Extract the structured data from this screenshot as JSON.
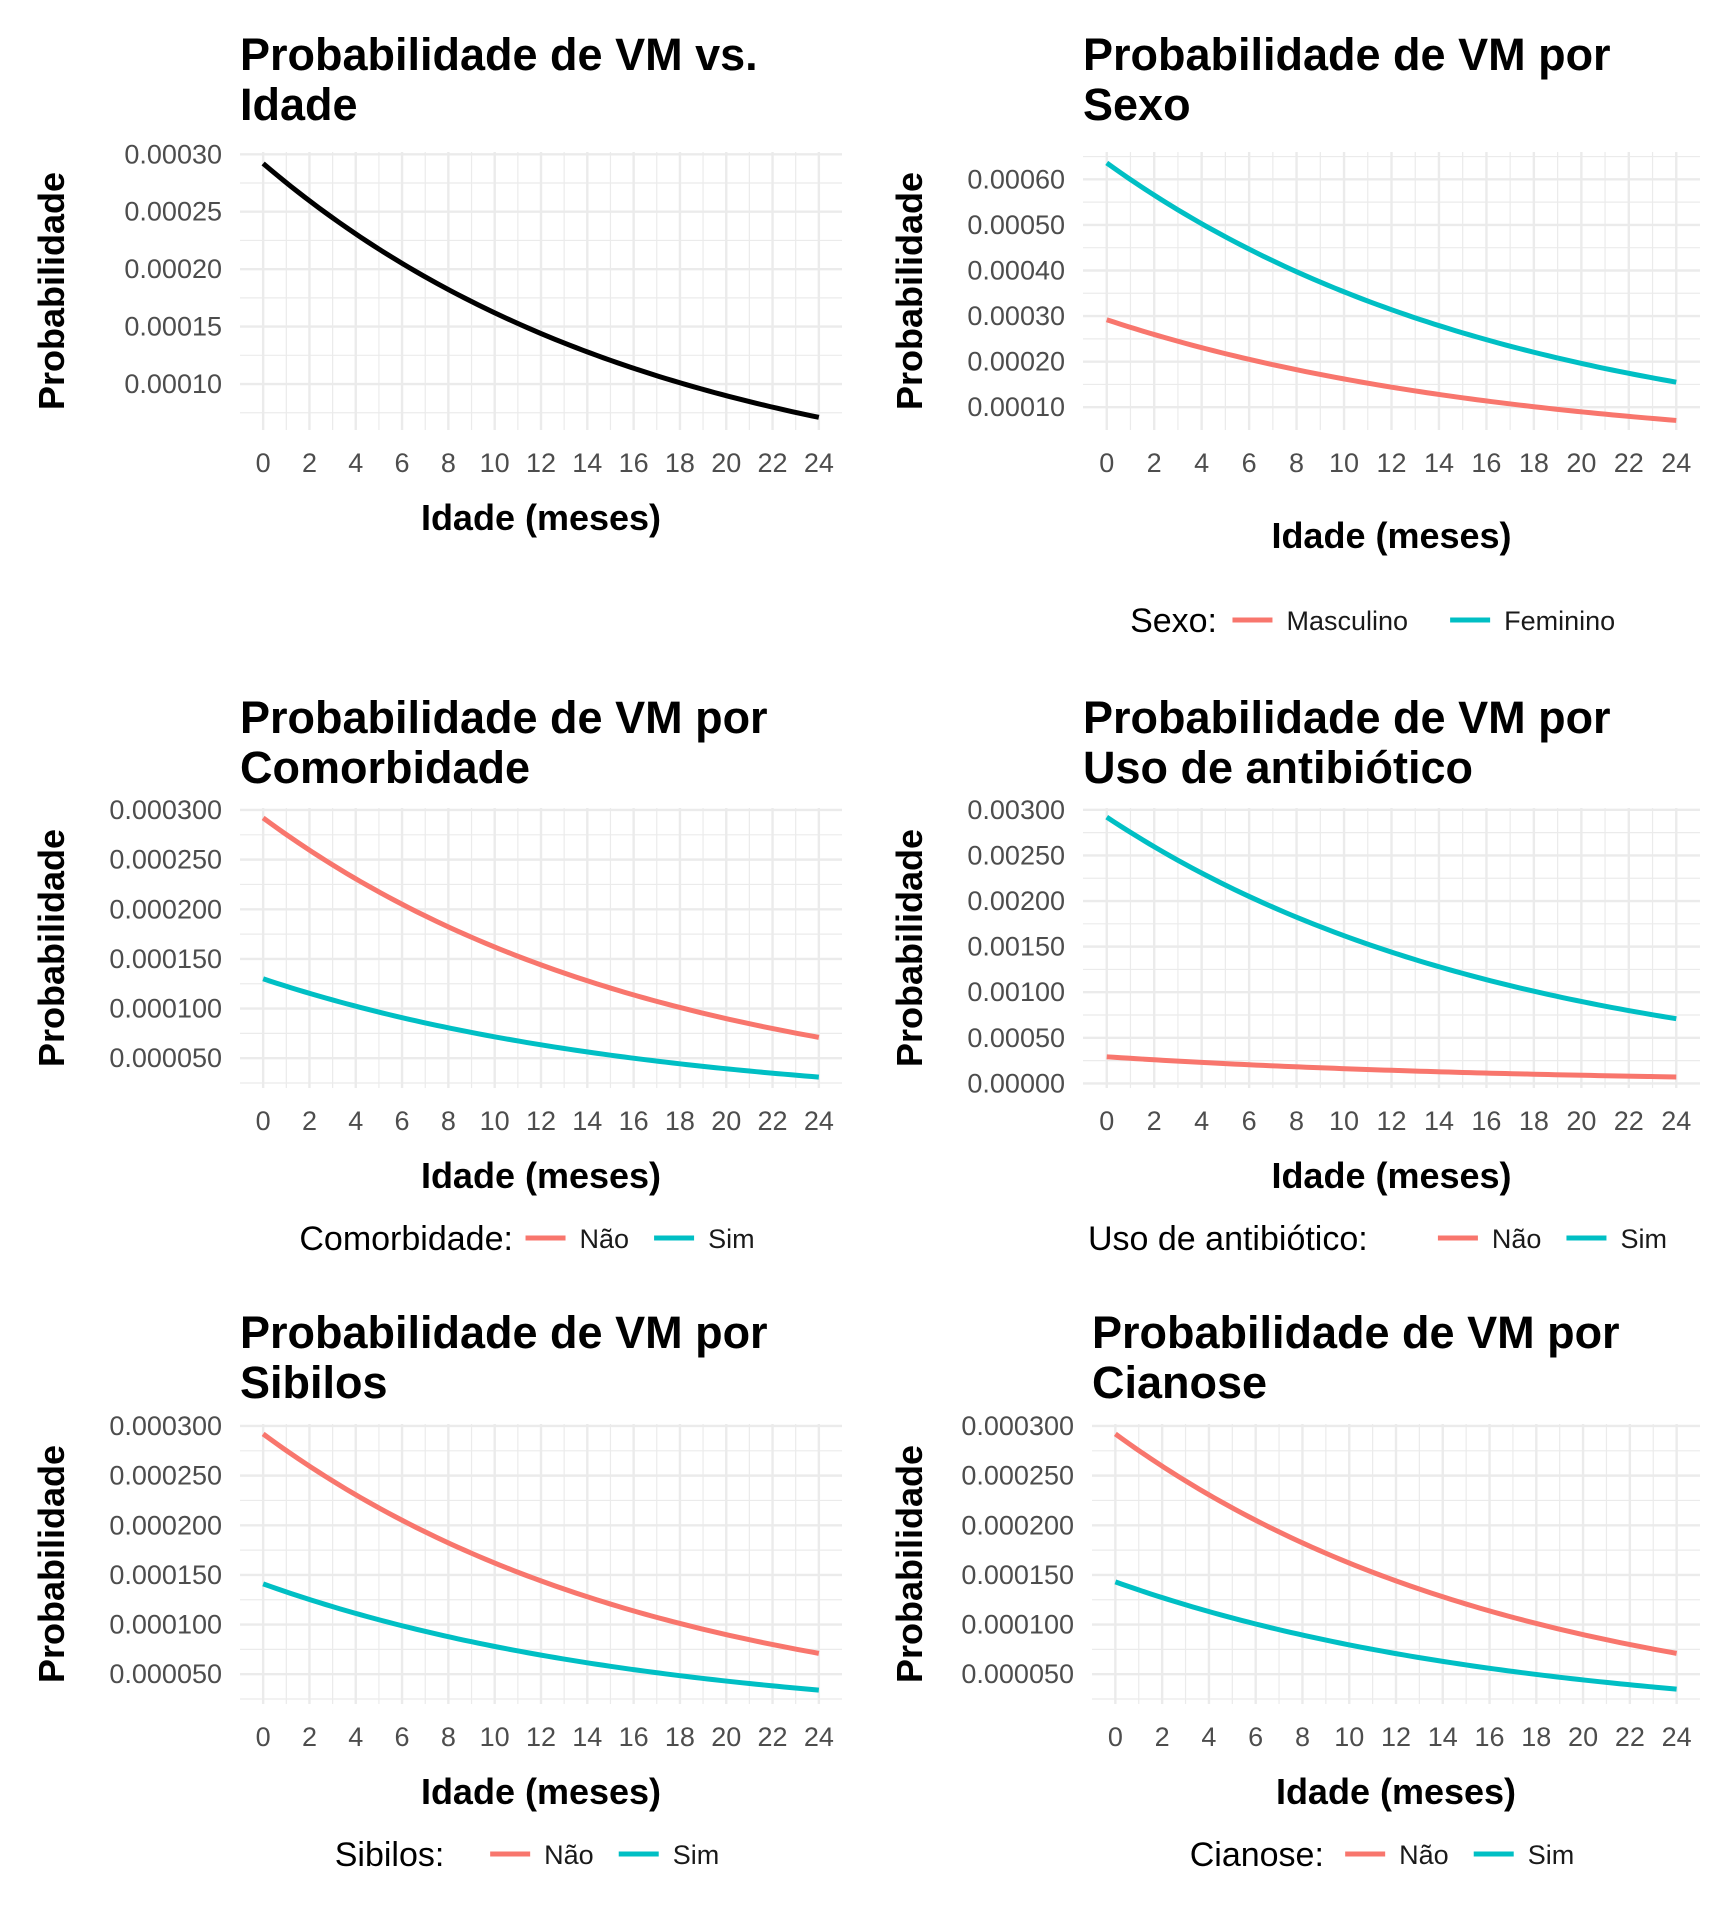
{
  "chart_data": [
    {
      "type": "line",
      "title": [
        "Probabilidade de VM vs.",
        "Idade"
      ],
      "xlabel": "Idade (meses)",
      "ylabel": "Probabilidade",
      "xlim": [
        -1,
        25
      ],
      "ylim": [
        6e-05,
        0.000302
      ],
      "xticks": [
        0,
        2,
        4,
        6,
        8,
        10,
        12,
        14,
        16,
        18,
        20,
        22,
        24
      ],
      "yticks": [
        0.0001,
        0.00015,
        0.0002,
        0.00025,
        0.0003
      ],
      "ytick_labels": [
        "0.00010",
        "0.00015",
        "0.00020",
        "0.00025",
        "0.00030"
      ],
      "grid": true,
      "legend_title": "",
      "series": [
        {
          "name": "",
          "color": "#000000",
          "start": 0.000292,
          "end": 7.1e-05,
          "x_range": [
            0,
            24
          ]
        }
      ]
    },
    {
      "type": "line",
      "title": [
        "Probabilidade de VM por",
        "Sexo"
      ],
      "xlabel": "Idade (meses)",
      "ylabel": "Probabilidade",
      "xlim": [
        -1,
        25
      ],
      "ylim": [
        5e-05,
        0.00066
      ],
      "xticks": [
        0,
        2,
        4,
        6,
        8,
        10,
        12,
        14,
        16,
        18,
        20,
        22,
        24
      ],
      "yticks": [
        0.0001,
        0.0002,
        0.0003,
        0.0004,
        0.0005,
        0.0006
      ],
      "ytick_labels": [
        "0.00010",
        "0.00020",
        "0.00030",
        "0.00040",
        "0.00050",
        "0.00060"
      ],
      "grid": true,
      "legend_title": "Sexo:",
      "legend_position": "bottom",
      "series": [
        {
          "name": "Masculino",
          "color": "#F8766D",
          "start": 0.000292,
          "end": 7.1e-05,
          "x_range": [
            0,
            24
          ]
        },
        {
          "name": "Feminino",
          "color": "#00BFC4",
          "start": 0.000636,
          "end": 0.000155,
          "x_range": [
            0,
            24
          ]
        }
      ]
    },
    {
      "type": "line",
      "title": [
        "Probabilidade de VM por",
        "Comorbidade"
      ],
      "xlabel": "Idade (meses)",
      "ylabel": "Probabilidade",
      "xlim": [
        -1,
        25
      ],
      "ylim": [
        2e-05,
        0.000302
      ],
      "xticks": [
        0,
        2,
        4,
        6,
        8,
        10,
        12,
        14,
        16,
        18,
        20,
        22,
        24
      ],
      "yticks": [
        5e-05,
        0.0001,
        0.00015,
        0.0002,
        0.00025,
        0.0003
      ],
      "ytick_labels": [
        "0.000050",
        "0.000100",
        "0.000150",
        "0.000200",
        "0.000250",
        "0.000300"
      ],
      "grid": true,
      "legend_title": "Comorbidade:",
      "legend_position": "bottom",
      "series": [
        {
          "name": "Não",
          "color": "#F8766D",
          "start": 0.000292,
          "end": 7.1e-05,
          "x_range": [
            0,
            24
          ]
        },
        {
          "name": "Sim",
          "color": "#00BFC4",
          "start": 0.00013,
          "end": 3.1e-05,
          "x_range": [
            0,
            24
          ]
        }
      ]
    },
    {
      "type": "line",
      "title": [
        "Probabilidade de VM por",
        "Uso de antibiótico"
      ],
      "xlabel": "Idade (meses)",
      "ylabel": "Probabilidade",
      "xlim": [
        -1,
        25
      ],
      "ylim": [
        -5e-05,
        0.00302
      ],
      "xticks": [
        0,
        2,
        4,
        6,
        8,
        10,
        12,
        14,
        16,
        18,
        20,
        22,
        24
      ],
      "yticks": [
        0,
        0.0005,
        0.001,
        0.0015,
        0.002,
        0.0025,
        0.003
      ],
      "ytick_labels": [
        "0.00000",
        "0.00050",
        "0.00100",
        "0.00150",
        "0.00200",
        "0.00250",
        "0.00300"
      ],
      "grid": true,
      "legend_title": "Uso de antibiótico:",
      "legend_position": "bottom",
      "series": [
        {
          "name": "Não",
          "color": "#F8766D",
          "start": 0.000292,
          "end": 7.1e-05,
          "x_range": [
            0,
            24
          ]
        },
        {
          "name": "Sim",
          "color": "#00BFC4",
          "start": 0.00292,
          "end": 0.00071,
          "x_range": [
            0,
            24
          ]
        }
      ]
    },
    {
      "type": "line",
      "title": [
        "Probabilidade de VM por",
        "Sibilos"
      ],
      "xlabel": "Idade (meses)",
      "ylabel": "Probabilidade",
      "xlim": [
        -1,
        25
      ],
      "ylim": [
        2e-05,
        0.000302
      ],
      "xticks": [
        0,
        2,
        4,
        6,
        8,
        10,
        12,
        14,
        16,
        18,
        20,
        22,
        24
      ],
      "yticks": [
        5e-05,
        0.0001,
        0.00015,
        0.0002,
        0.00025,
        0.0003
      ],
      "ytick_labels": [
        "0.000050",
        "0.000100",
        "0.000150",
        "0.000200",
        "0.000250",
        "0.000300"
      ],
      "grid": true,
      "legend_title": "Sibilos:",
      "legend_position": "bottom",
      "series": [
        {
          "name": "Não",
          "color": "#F8766D",
          "start": 0.000292,
          "end": 7.1e-05,
          "x_range": [
            0,
            24
          ]
        },
        {
          "name": "Sim",
          "color": "#00BFC4",
          "start": 0.000141,
          "end": 3.4e-05,
          "x_range": [
            0,
            24
          ]
        }
      ]
    },
    {
      "type": "line",
      "title": [
        "Probabilidade de VM por",
        "Cianose"
      ],
      "xlabel": "Idade (meses)",
      "ylabel": "Probabilidade",
      "xlim": [
        -1,
        25
      ],
      "ylim": [
        2e-05,
        0.000302
      ],
      "xticks": [
        0,
        2,
        4,
        6,
        8,
        10,
        12,
        14,
        16,
        18,
        20,
        22,
        24
      ],
      "yticks": [
        5e-05,
        0.0001,
        0.00015,
        0.0002,
        0.00025,
        0.0003
      ],
      "ytick_labels": [
        "0.000050",
        "0.000100",
        "0.000150",
        "0.000200",
        "0.000250",
        "0.000300"
      ],
      "grid": true,
      "legend_title": "Cianose:",
      "legend_position": "bottom",
      "series": [
        {
          "name": "Não",
          "color": "#F8766D",
          "start": 0.000292,
          "end": 7.1e-05,
          "x_range": [
            0,
            24
          ]
        },
        {
          "name": "Sim",
          "color": "#00BFC4",
          "start": 0.000143,
          "end": 3.5e-05,
          "x_range": [
            0,
            24
          ]
        }
      ]
    }
  ]
}
